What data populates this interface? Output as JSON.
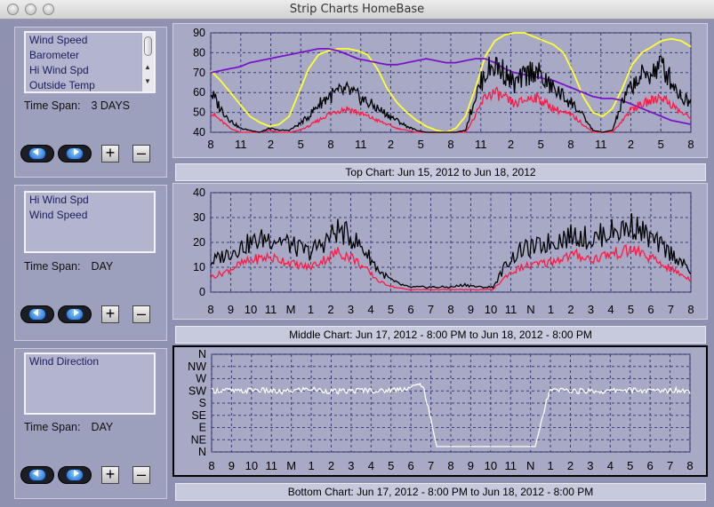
{
  "window": {
    "title": "Strip Charts    HomeBase"
  },
  "panels": [
    {
      "list": [
        "Wind Speed",
        "Barometer",
        "Hi Wind Spd",
        "Outside Temp"
      ],
      "timespan_label": "Time Span:",
      "timespan_value": "3 DAYS",
      "plus_label": "+",
      "minus_label": "–"
    },
    {
      "list": [
        "Hi Wind Spd",
        "Wind Speed"
      ],
      "timespan_label": "Time Span:",
      "timespan_value": "DAY",
      "plus_label": "+",
      "minus_label": "–"
    },
    {
      "list": [
        "Wind Direction"
      ],
      "timespan_label": "Time Span:",
      "timespan_value": "DAY",
      "plus_label": "+",
      "minus_label": "–"
    }
  ],
  "captions": {
    "top": "Top Chart:  Jun 15, 2012   to  Jun 18, 2012",
    "middle": "Middle Chart:  Jun 17, 2012 - 8:00 PM  to  Jun 18, 2012 - 8:00 PM",
    "bottom": "Bottom Chart:  Jun 17, 2012 - 8:00 PM  to  Jun 18, 2012 - 8:00 PM"
  },
  "colors": {
    "plot_bg": "#a7a9c5",
    "grid": "#3a3a78",
    "black_series": "#000000",
    "red_series": "#ff1b45",
    "yellow_series": "#ffff33",
    "purple_series": "#7a14c8",
    "white_series": "#ffffff"
  },
  "chart_data": [
    {
      "type": "line",
      "x_ticks": [
        "8",
        "11",
        "2",
        "5",
        "8",
        "11",
        "2",
        "5",
        "8",
        "11",
        "2",
        "5",
        "8",
        "11",
        "2",
        "5",
        "8"
      ],
      "y_ticks": [
        "40",
        "50",
        "60",
        "70",
        "80",
        "90"
      ],
      "ylim": [
        40,
        90
      ],
      "grid": true,
      "series": [
        {
          "name": "Outside Temp",
          "color": "yellow",
          "values": [
            71,
            66,
            60,
            54,
            48,
            45,
            43,
            44,
            48,
            60,
            72,
            79,
            81,
            82,
            82,
            81,
            79,
            72,
            62,
            55,
            50,
            46,
            43,
            41,
            40,
            42,
            48,
            62,
            78,
            86,
            89,
            90,
            90,
            88,
            86,
            84,
            80,
            70,
            58,
            50,
            48,
            52,
            62,
            74,
            80,
            83,
            86,
            87,
            86,
            83
          ]
        },
        {
          "name": "Barometer",
          "color": "purple",
          "values": [
            70,
            71,
            72,
            73,
            75,
            76,
            77,
            78,
            79,
            80,
            81,
            82,
            82,
            81,
            79,
            77,
            76,
            75,
            74,
            74,
            75,
            76,
            77,
            76,
            75,
            75,
            76,
            77,
            77,
            75,
            72,
            70,
            69,
            68,
            67,
            66,
            64,
            62,
            60,
            58,
            57,
            57,
            56,
            54,
            52,
            50,
            48,
            46,
            45,
            44
          ]
        },
        {
          "name": "Wind Speed",
          "color": "red",
          "values": [
            50,
            46,
            42,
            40,
            40,
            40,
            41,
            40,
            40,
            41,
            43,
            46,
            49,
            51,
            52,
            50,
            48,
            46,
            44,
            42,
            41,
            40,
            40,
            40,
            40,
            40,
            40,
            48,
            58,
            60,
            57,
            54,
            56,
            58,
            55,
            52,
            50,
            48,
            44,
            40,
            40,
            40,
            46,
            52,
            54,
            56,
            58,
            54,
            50,
            47
          ]
        },
        {
          "name": "Hi Wind Spd",
          "color": "black",
          "values": [
            60,
            52,
            46,
            42,
            41,
            40,
            42,
            41,
            41,
            44,
            48,
            54,
            58,
            60,
            61,
            58,
            55,
            52,
            49,
            46,
            43,
            41,
            40,
            40,
            40,
            40,
            41,
            58,
            70,
            74,
            70,
            64,
            68,
            72,
            66,
            62,
            58,
            54,
            48,
            41,
            40,
            41,
            55,
            64,
            68,
            70,
            74,
            66,
            58,
            55
          ]
        }
      ]
    },
    {
      "type": "line",
      "x_ticks": [
        "8",
        "9",
        "10",
        "11",
        "M",
        "1",
        "2",
        "3",
        "4",
        "5",
        "6",
        "7",
        "8",
        "9",
        "10",
        "11",
        "N",
        "1",
        "2",
        "3",
        "4",
        "5",
        "6",
        "7",
        "8"
      ],
      "y_ticks": [
        "0",
        "10",
        "20",
        "30",
        "40"
      ],
      "ylim": [
        0,
        40
      ],
      "grid": true,
      "series": [
        {
          "name": "Hi Wind Spd",
          "color": "black",
          "values": [
            12,
            15,
            18,
            20,
            22,
            21,
            18,
            16,
            20,
            25,
            22,
            16,
            8,
            4,
            2,
            2,
            2,
            2,
            3,
            2,
            2,
            12,
            17,
            18,
            20,
            22,
            23,
            21,
            24,
            25,
            27,
            22,
            18,
            14,
            8
          ]
        },
        {
          "name": "Wind Speed",
          "color": "red",
          "values": [
            6,
            8,
            11,
            13,
            14,
            13,
            11,
            10,
            13,
            16,
            14,
            9,
            4,
            2,
            1,
            1,
            1,
            1,
            1,
            1,
            1,
            7,
            10,
            11,
            12,
            14,
            15,
            13,
            15,
            16,
            17,
            14,
            11,
            8,
            5
          ]
        }
      ]
    },
    {
      "type": "line",
      "x_ticks": [
        "8",
        "9",
        "10",
        "11",
        "M",
        "1",
        "2",
        "3",
        "4",
        "5",
        "6",
        "7",
        "8",
        "9",
        "10",
        "11",
        "N",
        "1",
        "2",
        "3",
        "4",
        "5",
        "6",
        "7",
        "8"
      ],
      "y_ticks": [
        "N",
        "NW",
        "W",
        "SW",
        "S",
        "SE",
        "E",
        "NE",
        "N"
      ],
      "grid": true,
      "series": [
        {
          "name": "Wind Direction",
          "color": "white",
          "values": [
            225,
            228,
            222,
            230,
            225,
            220,
            228,
            232,
            226,
            222,
            225,
            229,
            224,
            230,
            236,
            250,
            20,
            20,
            20,
            20,
            20,
            20,
            20,
            20,
            225,
            228,
            224,
            226,
            222,
            230,
            228,
            225,
            226,
            229,
            224
          ]
        }
      ]
    }
  ]
}
